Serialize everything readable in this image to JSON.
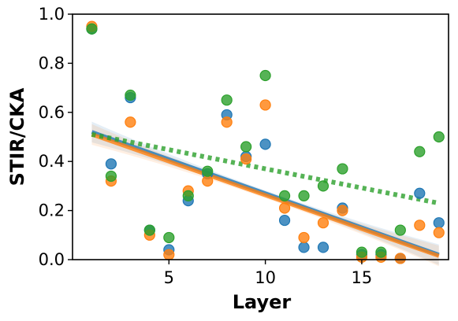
{
  "chart_data": {
    "type": "scatter",
    "title": "",
    "xlabel": "Layer",
    "ylabel": "STIR/CKA",
    "xlim": [
      0,
      19.5
    ],
    "ylim": [
      0.0,
      1.0
    ],
    "xticks": [
      5,
      10,
      15
    ],
    "yticks": [
      0.0,
      0.2,
      0.4,
      0.6,
      0.8,
      1.0
    ],
    "ytick_labels": [
      "0.0",
      "0.2",
      "0.4",
      "0.6",
      "0.8",
      "1.0"
    ],
    "grid": false,
    "legend": "none",
    "series": [
      {
        "color": "#1f77b4",
        "points": [
          {
            "x": 1,
            "y": 0.94
          },
          {
            "x": 2,
            "y": 0.39
          },
          {
            "x": 3,
            "y": 0.66
          },
          {
            "x": 4,
            "y": 0.12
          },
          {
            "x": 5,
            "y": 0.04
          },
          {
            "x": 6,
            "y": 0.24
          },
          {
            "x": 7,
            "y": 0.35
          },
          {
            "x": 8,
            "y": 0.59
          },
          {
            "x": 9,
            "y": 0.42
          },
          {
            "x": 10,
            "y": 0.47
          },
          {
            "x": 11,
            "y": 0.16
          },
          {
            "x": 12,
            "y": 0.05
          },
          {
            "x": 13,
            "y": 0.05
          },
          {
            "x": 14,
            "y": 0.21
          },
          {
            "x": 15,
            "y": 0.02
          },
          {
            "x": 16,
            "y": 0.02
          },
          {
            "x": 17,
            "y": 0.005
          },
          {
            "x": 18,
            "y": 0.27
          },
          {
            "x": 19,
            "y": 0.15
          }
        ],
        "trend": {
          "x": [
            1,
            19
          ],
          "y": [
            0.52,
            0.02
          ],
          "style": "solid"
        }
      },
      {
        "color": "#ff7f0e",
        "points": [
          {
            "x": 1,
            "y": 0.95
          },
          {
            "x": 2,
            "y": 0.32
          },
          {
            "x": 3,
            "y": 0.56
          },
          {
            "x": 4,
            "y": 0.1
          },
          {
            "x": 5,
            "y": 0.02
          },
          {
            "x": 6,
            "y": 0.28
          },
          {
            "x": 7,
            "y": 0.32
          },
          {
            "x": 8,
            "y": 0.56
          },
          {
            "x": 9,
            "y": 0.41
          },
          {
            "x": 10,
            "y": 0.63
          },
          {
            "x": 11,
            "y": 0.21
          },
          {
            "x": 12,
            "y": 0.09
          },
          {
            "x": 13,
            "y": 0.15
          },
          {
            "x": 14,
            "y": 0.2
          },
          {
            "x": 15,
            "y": 0.01
          },
          {
            "x": 16,
            "y": 0.01
          },
          {
            "x": 17,
            "y": 0.005
          },
          {
            "x": 18,
            "y": 0.14
          },
          {
            "x": 19,
            "y": 0.11
          }
        ],
        "trend": {
          "x": [
            1,
            19
          ],
          "y": [
            0.51,
            0.015
          ],
          "style": "solid"
        }
      },
      {
        "color": "#2ca02c",
        "points": [
          {
            "x": 1,
            "y": 0.94
          },
          {
            "x": 2,
            "y": 0.34
          },
          {
            "x": 3,
            "y": 0.67
          },
          {
            "x": 4,
            "y": 0.12
          },
          {
            "x": 5,
            "y": 0.09
          },
          {
            "x": 6,
            "y": 0.26
          },
          {
            "x": 7,
            "y": 0.36
          },
          {
            "x": 8,
            "y": 0.65
          },
          {
            "x": 9,
            "y": 0.46
          },
          {
            "x": 10,
            "y": 0.75
          },
          {
            "x": 11,
            "y": 0.26
          },
          {
            "x": 12,
            "y": 0.26
          },
          {
            "x": 13,
            "y": 0.3
          },
          {
            "x": 14,
            "y": 0.37
          },
          {
            "x": 15,
            "y": 0.03
          },
          {
            "x": 16,
            "y": 0.03
          },
          {
            "x": 17,
            "y": 0.12
          },
          {
            "x": 18,
            "y": 0.44
          },
          {
            "x": 19,
            "y": 0.5
          }
        ],
        "trend": {
          "x": [
            1,
            19
          ],
          "y": [
            0.51,
            0.23
          ],
          "style": "dotted"
        }
      }
    ]
  }
}
